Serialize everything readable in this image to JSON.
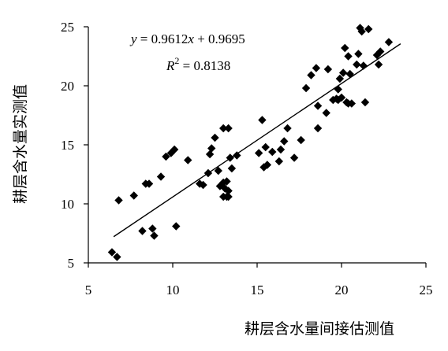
{
  "chart_data": {
    "type": "scatter",
    "title": "",
    "xlabel": "耕层含水量间接估测值",
    "ylabel": "耕层含水量实测值",
    "xlim": [
      5,
      25
    ],
    "ylim": [
      5,
      25
    ],
    "xticks": [
      "5",
      "10",
      "15",
      "20",
      "25"
    ],
    "yticks": [
      "5",
      "10",
      "15",
      "20",
      "25"
    ],
    "grid": false,
    "legend": "none",
    "marker": "diamond",
    "marker_color": "#000000",
    "equation": {
      "y_part": "y",
      "eq_part": " = 0.9612",
      "x_part": "x",
      "rest": " + 0.9695",
      "r_letter": "R",
      "r_sup": "2",
      "r_rest": " = 0.8138"
    },
    "trendline": {
      "slope": 0.9612,
      "intercept": 0.9695,
      "x_range": [
        6.5,
        23.5
      ]
    },
    "series": [
      {
        "points": [
          [
            6.4,
            5.9
          ],
          [
            6.7,
            5.5
          ],
          [
            6.8,
            10.3
          ],
          [
            7.7,
            10.7
          ],
          [
            8.2,
            7.7
          ],
          [
            8.4,
            11.7
          ],
          [
            8.6,
            11.7
          ],
          [
            8.8,
            7.9
          ],
          [
            8.9,
            7.3
          ],
          [
            9.3,
            12.3
          ],
          [
            9.6,
            14.0
          ],
          [
            9.9,
            14.3
          ],
          [
            10.1,
            14.6
          ],
          [
            10.2,
            8.1
          ],
          [
            10.9,
            13.7
          ],
          [
            11.6,
            11.7
          ],
          [
            11.8,
            11.6
          ],
          [
            12.1,
            12.6
          ],
          [
            12.2,
            14.2
          ],
          [
            12.3,
            14.7
          ],
          [
            12.5,
            15.6
          ],
          [
            12.7,
            12.8
          ],
          [
            12.8,
            11.5
          ],
          [
            13.0,
            16.4
          ],
          [
            13.0,
            11.8
          ],
          [
            13.0,
            10.6
          ],
          [
            13.1,
            11.3
          ],
          [
            13.2,
            10.6
          ],
          [
            13.2,
            11.9
          ],
          [
            13.3,
            16.4
          ],
          [
            13.3,
            11.1
          ],
          [
            13.3,
            10.6
          ],
          [
            13.4,
            13.9
          ],
          [
            13.5,
            13.0
          ],
          [
            13.8,
            14.1
          ],
          [
            15.1,
            14.3
          ],
          [
            15.3,
            17.1
          ],
          [
            15.4,
            13.1
          ],
          [
            15.5,
            14.8
          ],
          [
            15.6,
            13.3
          ],
          [
            15.9,
            14.4
          ],
          [
            16.3,
            13.6
          ],
          [
            16.4,
            14.6
          ],
          [
            16.6,
            15.3
          ],
          [
            16.8,
            16.4
          ],
          [
            17.2,
            13.9
          ],
          [
            17.6,
            15.4
          ],
          [
            17.9,
            19.8
          ],
          [
            18.2,
            20.9
          ],
          [
            18.5,
            21.5
          ],
          [
            18.6,
            18.3
          ],
          [
            18.6,
            16.4
          ],
          [
            19.1,
            17.7
          ],
          [
            19.2,
            21.4
          ],
          [
            19.5,
            18.8
          ],
          [
            19.7,
            18.9
          ],
          [
            19.8,
            19.7
          ],
          [
            19.8,
            18.8
          ],
          [
            19.9,
            20.6
          ],
          [
            20.0,
            19.0
          ],
          [
            20.1,
            21.1
          ],
          [
            20.2,
            23.2
          ],
          [
            20.3,
            18.6
          ],
          [
            20.4,
            18.5
          ],
          [
            20.4,
            22.5
          ],
          [
            20.5,
            21.0
          ],
          [
            20.6,
            18.5
          ],
          [
            20.9,
            21.8
          ],
          [
            21.0,
            22.7
          ],
          [
            21.1,
            24.9
          ],
          [
            21.2,
            24.6
          ],
          [
            21.3,
            21.7
          ],
          [
            21.4,
            18.6
          ],
          [
            21.6,
            24.8
          ],
          [
            22.1,
            22.6
          ],
          [
            22.2,
            21.8
          ],
          [
            22.3,
            22.9
          ],
          [
            22.8,
            23.7
          ]
        ]
      }
    ]
  }
}
